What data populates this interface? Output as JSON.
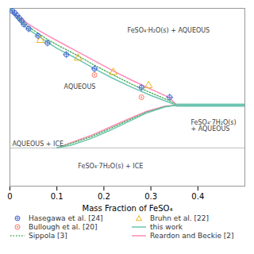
{
  "chart_data": {
    "type": "line",
    "xlabel": "Mass Fraction of FeSO₄",
    "xlim": [
      0,
      0.5
    ],
    "ylim": [
      0,
      1
    ],
    "xticks": [
      0,
      0.1,
      0.2,
      0.3,
      0.4
    ],
    "tick_labels": "x",
    "grid": false,
    "legend": "bottom",
    "series": [
      {
        "name": "Hasegawa et al. [24]",
        "type": "scatter",
        "marker": "circle-plus",
        "x": [
          0.005,
          0.01,
          0.015,
          0.02,
          0.025,
          0.03,
          0.04,
          0.06,
          0.08,
          0.12,
          0.18,
          0.28,
          0.34
        ],
        "values": [
          0.985,
          0.975,
          0.96,
          0.945,
          0.93,
          0.91,
          0.885,
          0.845,
          0.805,
          0.74,
          0.66,
          0.555,
          0.5
        ]
      },
      {
        "name": "Bruhn et al. [22]",
        "type": "scatter",
        "marker": "triangle",
        "x": [
          0.065,
          0.145,
          0.22,
          0.295
        ],
        "values": [
          0.82,
          0.72,
          0.64,
          0.565
        ]
      },
      {
        "name": "Bullough et al. [20]",
        "type": "scatter",
        "marker": "circle-dot",
        "x": [
          0.18,
          0.28
        ],
        "values": [
          0.625,
          0.5
        ]
      },
      {
        "name": "this work",
        "type": "line",
        "line_style": "solid",
        "x": [
          0.0,
          0.01,
          0.02,
          0.04,
          0.06,
          0.08,
          0.1,
          0.14,
          0.18,
          0.22,
          0.26,
          0.3,
          0.34,
          0.355,
          null,
          0.1,
          0.13,
          0.17,
          0.21,
          0.25,
          0.29,
          0.33,
          0.355
        ],
        "values": [
          1.0,
          0.96,
          0.93,
          0.88,
          0.845,
          0.81,
          0.775,
          0.72,
          0.66,
          0.605,
          0.555,
          0.51,
          0.47,
          0.455,
          null,
          0.215,
          0.23,
          0.265,
          0.31,
          0.36,
          0.41,
          0.445,
          0.455
        ]
      },
      {
        "name": "Sippola [3]",
        "type": "line",
        "line_style": "dotted",
        "x": [
          0.0,
          0.01,
          0.02,
          0.04,
          0.06,
          0.08,
          0.1,
          0.14,
          0.18,
          0.22,
          0.26,
          0.3,
          0.34,
          0.355,
          null,
          0.1,
          0.13,
          0.17,
          0.21,
          0.25,
          0.29,
          0.33,
          0.355
        ],
        "values": [
          1.0,
          0.965,
          0.938,
          0.895,
          0.86,
          0.825,
          0.795,
          0.74,
          0.68,
          0.625,
          0.572,
          0.525,
          0.48,
          0.455,
          null,
          0.215,
          0.24,
          0.275,
          0.32,
          0.368,
          0.415,
          0.448,
          0.455
        ]
      },
      {
        "name": "Reardon and Beckie [2]",
        "type": "line",
        "line_style": "solid",
        "x": [
          0.0,
          0.01,
          0.02,
          0.04,
          0.06,
          0.08,
          0.1,
          0.14,
          0.18,
          0.22,
          0.26,
          0.3,
          0.34,
          0.355,
          null,
          0.1,
          0.13,
          0.17,
          0.21,
          0.25,
          0.29,
          0.33,
          0.355
        ],
        "values": [
          1.0,
          0.97,
          0.948,
          0.91,
          0.878,
          0.848,
          0.818,
          0.762,
          0.705,
          0.648,
          0.595,
          0.545,
          0.497,
          0.455,
          null,
          0.215,
          0.245,
          0.282,
          0.328,
          0.375,
          0.42,
          0.45,
          0.455
        ]
      }
    ],
    "hlines": [
      {
        "y": 0.215
      },
      {
        "y": 0.455,
        "xmin": 0.355,
        "xmax": 0.5,
        "series": "this work"
      }
    ],
    "annotations": [
      {
        "text": "FeSO₄·H₂O(s) + AQUEOUS",
        "x": 0.25,
        "y": 0.875
      },
      {
        "text": "AQUEOUS",
        "x": 0.115,
        "y": 0.56
      },
      {
        "text": "AQUEOUS + ICE",
        "x": 0.005,
        "y": 0.238
      },
      {
        "text": "FeSO₄·7H₂O(s) + ICE",
        "x": 0.145,
        "y": 0.11
      },
      {
        "text": "FeSO₄·7H₂O(s) + AQUEOUS",
        "x": 0.385,
        "y": 0.34
      }
    ]
  }
}
